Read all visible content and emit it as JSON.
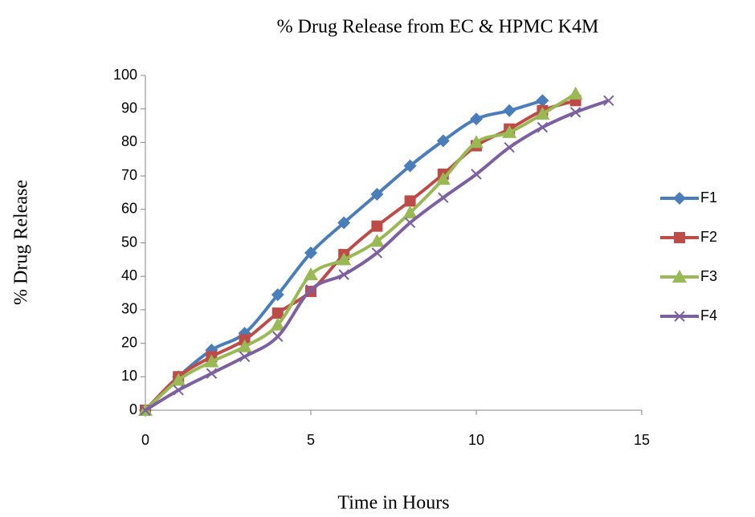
{
  "chart_data": {
    "type": "line",
    "title": "% Drug Release from EC & HPMC K4M",
    "x_label": "Time in Hours",
    "y_label": "% Drug Release",
    "xlim": [
      0,
      15
    ],
    "xticks": [
      0,
      5,
      10,
      15
    ],
    "ylim": [
      0,
      100
    ],
    "yticks": [
      0,
      10,
      20,
      30,
      40,
      50,
      60,
      70,
      80,
      90,
      100
    ],
    "grid": false,
    "smooth": true,
    "legend": "right",
    "series": [
      {
        "name": "F1",
        "color": "#4a7ebb",
        "marker": "diamond",
        "x": [
          0,
          1,
          2,
          3,
          4,
          5,
          6,
          7,
          8,
          9,
          10,
          11,
          12
        ],
        "values": [
          0,
          10,
          18,
          23,
          34.5,
          47,
          56,
          64.5,
          73,
          80.5,
          87,
          89.5,
          92.5
        ]
      },
      {
        "name": "F2",
        "color": "#be4b48",
        "marker": "square",
        "x": [
          0,
          1,
          2,
          3,
          4,
          5,
          6,
          7,
          8,
          9,
          10,
          11,
          12,
          13
        ],
        "values": [
          0,
          10,
          16,
          21,
          29,
          35.5,
          46.5,
          55,
          62.5,
          70.5,
          79,
          84,
          89.5,
          92.5
        ]
      },
      {
        "name": "F3",
        "color": "#98b954",
        "marker": "triangle",
        "x": [
          0,
          1,
          2,
          3,
          4,
          5,
          6,
          7,
          8,
          9,
          10,
          11,
          12,
          13
        ],
        "values": [
          0,
          9,
          14.5,
          19,
          25.5,
          40.5,
          45,
          50.5,
          59,
          69,
          80,
          83,
          88.5,
          94.5
        ]
      },
      {
        "name": "F4",
        "color": "#7d60a0",
        "marker": "cross",
        "x": [
          0,
          1,
          2,
          3,
          4,
          5,
          6,
          7,
          8,
          9,
          10,
          11,
          12,
          13,
          14
        ],
        "values": [
          0,
          6,
          11,
          16,
          22,
          36,
          40.5,
          47,
          56,
          63.5,
          70.5,
          78.5,
          84.5,
          89,
          92.5
        ]
      }
    ]
  }
}
